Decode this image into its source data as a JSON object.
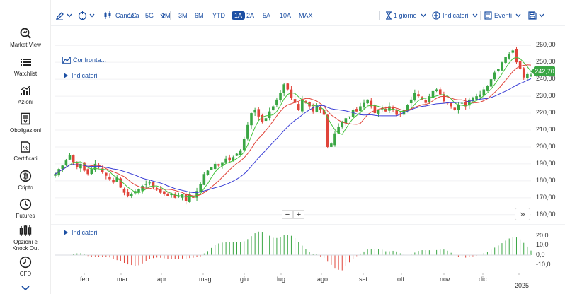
{
  "sidebar": {
    "items": [
      {
        "label": "Market View",
        "icon": "market-view-icon"
      },
      {
        "label": "Watchlist",
        "icon": "watchlist-icon"
      },
      {
        "label": "Azioni",
        "icon": "stocks-chart-icon"
      },
      {
        "label": "Obbligazioni",
        "icon": "bonds-icon"
      },
      {
        "label": "Certificati",
        "icon": "certificate-icon"
      },
      {
        "label": "Cripto",
        "icon": "bitcoin-icon"
      },
      {
        "label": "Futures",
        "icon": "futures-clock-icon"
      },
      {
        "label": "Opzioni e Knock Out",
        "icon": "options-icon"
      },
      {
        "label": "CFD",
        "icon": "cfd-icon"
      }
    ]
  },
  "toolbar": {
    "chart_type": "Candela",
    "ranges": [
      "1G",
      "5G",
      "1M",
      "3M",
      "6M",
      "YTD",
      "1A",
      "2A",
      "5A",
      "10A",
      "MAX"
    ],
    "active_range": "1A",
    "interval": "1 giorno",
    "indicators": "Indicatori",
    "events": "Eventi"
  },
  "chart": {
    "compare": "Confronta...",
    "indicators_main": "Indicatori",
    "indicators_sub": "Indicatori",
    "zoom_out": "−",
    "zoom_in": "+",
    "next": "»",
    "last_price": "242,70",
    "colors": {
      "up": "#3aa644",
      "down": "#e0443a",
      "ma_fast": "#42c23a",
      "ma_mid": "#e0443a",
      "ma_slow": "#3b3fd6",
      "accent": "#1c4fa3"
    }
  },
  "chart_data": {
    "type": "candlestick",
    "x_labels": [
      "feb",
      "mar",
      "apr",
      "mag",
      "giu",
      "lug",
      "ago",
      "set",
      "ott",
      "nov",
      "dic",
      "2025"
    ],
    "y_ticks": [
      "260,00",
      "250,00",
      "240,00",
      "230,00",
      "220,00",
      "210,00",
      "200,00",
      "190,00",
      "180,00",
      "170,00",
      "160,00"
    ],
    "ylim": [
      157,
      263
    ],
    "close_series": [
      184,
      187,
      189,
      192,
      195,
      191,
      188,
      190,
      186,
      184,
      187,
      190,
      188,
      185,
      183,
      181,
      179,
      182,
      176,
      173,
      171,
      172,
      174,
      175,
      177,
      178,
      179,
      176,
      175,
      173,
      172,
      171,
      172,
      170,
      171,
      172,
      168,
      172,
      170,
      174,
      178,
      184,
      186,
      188,
      190,
      189,
      191,
      193,
      192,
      194,
      196,
      198,
      205,
      213,
      220,
      222,
      218,
      215,
      217,
      221,
      224,
      228,
      232,
      237,
      234,
      229,
      226,
      222,
      228,
      226,
      224,
      221,
      224,
      222,
      219,
      200,
      202,
      208,
      212,
      215,
      217,
      218,
      222,
      221,
      224,
      226,
      228,
      224,
      220,
      222,
      223,
      221,
      224,
      222,
      219,
      219,
      222,
      225,
      228,
      232,
      230,
      228,
      226,
      230,
      233,
      234,
      231,
      227,
      226,
      224,
      222,
      225,
      226,
      224,
      228,
      229,
      230,
      231,
      234,
      236,
      240,
      244,
      246,
      250,
      253,
      255,
      257,
      250,
      246,
      241,
      243,
      242.7
    ],
    "osc_ticks": [
      "20,0",
      "10,0",
      "0,0",
      "-10,0"
    ],
    "osc_ylim": [
      -16,
      24
    ]
  }
}
